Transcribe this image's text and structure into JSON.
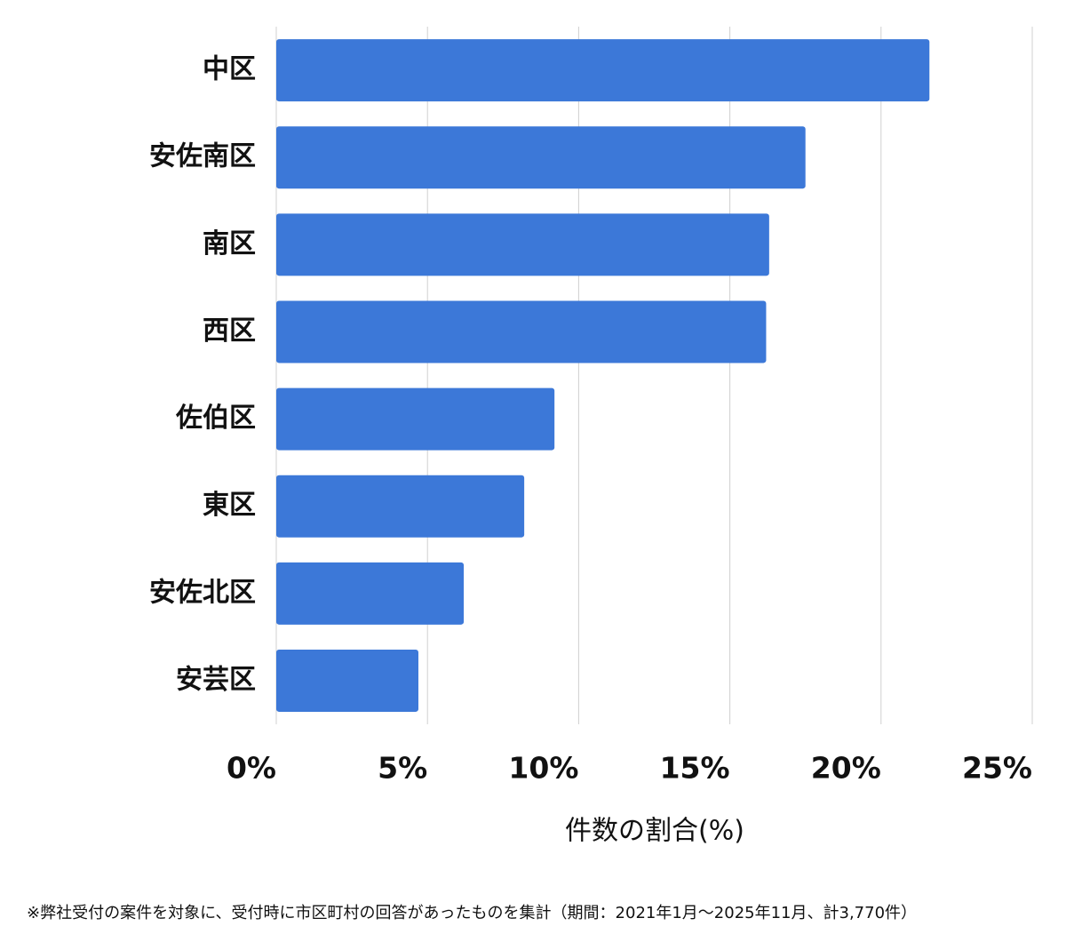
{
  "chart_data": {
    "type": "bar",
    "orientation": "horizontal",
    "categories": [
      "中区",
      "安佐南区",
      "南区",
      "西区",
      "佐伯区",
      "東区",
      "安佐北区",
      "安芸区"
    ],
    "values": [
      21.6,
      17.5,
      16.3,
      16.2,
      9.2,
      8.2,
      6.2,
      4.7
    ],
    "color": "#3c78d8",
    "xlim": [
      0,
      25
    ],
    "xticks": [
      {
        "value": 0,
        "label": "0%"
      },
      {
        "value": 5,
        "label": "5%"
      },
      {
        "value": 10,
        "label": "10%"
      },
      {
        "value": 15,
        "label": "15%"
      },
      {
        "value": 20,
        "label": "20%"
      },
      {
        "value": 25,
        "label": "25%"
      }
    ],
    "xlabel": "件数の割合(%)",
    "grid": true,
    "footnote": "※弊社受付の案件を対象に、受付時に市区町村の回答があったものを集計（期間：2021年1月～2025年11月、計3,770件）"
  }
}
